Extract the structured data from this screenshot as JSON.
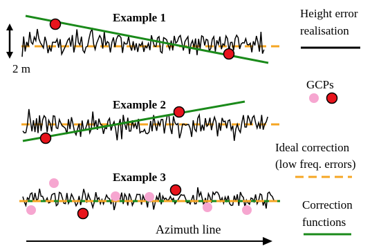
{
  "examples": [
    {
      "title": "Example 1"
    },
    {
      "title": "Example 2"
    },
    {
      "title": "Example 3"
    }
  ],
  "scale_label": "2 m",
  "axis_label": "Azimuth line",
  "legend": {
    "height_error": {
      "line1": "Height error",
      "line2": "realisation"
    },
    "gcps": {
      "label": "GCPs"
    },
    "ideal_correction": {
      "line1": "Ideal correction",
      "line2": "(low freq. errors)"
    },
    "correction_functions": {
      "line1": "Correction",
      "line2": "functions"
    }
  },
  "colors": {
    "height_error": "#000000",
    "ideal_correction": "#f5a623",
    "correction_function": "#1a8a1a",
    "gcp_pink": "#f6a6d0",
    "gcp_red": "#e8141c"
  }
}
